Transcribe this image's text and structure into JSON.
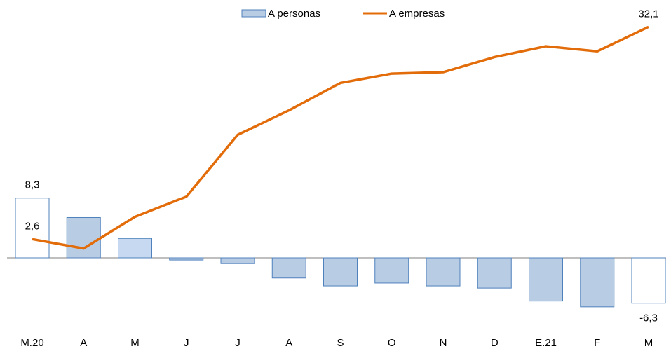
{
  "chart_data": {
    "type": "bar-line",
    "categories": [
      "M.20",
      "A",
      "M",
      "J",
      "J",
      "A",
      "S",
      "O",
      "N",
      "D",
      "E.21",
      "F",
      "M"
    ],
    "series": [
      {
        "name": "A personas",
        "type": "bar",
        "color": "#b8cce4",
        "stroke": "#4f81bd",
        "colors": [
          "#ffffff",
          "#b8cce4",
          "#c6d9f0",
          "#b8cce4",
          "#b8cce4",
          "#b8cce4",
          "#b8cce4",
          "#b8cce4",
          "#b8cce4",
          "#b8cce4",
          "#b8cce4",
          "#b8cce4",
          "#ffffff"
        ],
        "values": [
          8.3,
          5.6,
          2.7,
          -0.3,
          -0.8,
          -2.8,
          -3.9,
          -3.5,
          -3.9,
          -4.2,
          -6.0,
          -6.8,
          -6.3
        ],
        "value_labels": [
          "8,3",
          null,
          null,
          null,
          null,
          null,
          null,
          null,
          null,
          null,
          null,
          null,
          "-6,3"
        ]
      },
      {
        "name": "A empresas",
        "type": "line",
        "color": "#e36c0a",
        "values": [
          2.6,
          1.3,
          5.7,
          8.5,
          17.1,
          20.5,
          24.3,
          25.6,
          25.8,
          27.9,
          29.4,
          28.7,
          32.1
        ],
        "value_labels": [
          "2,6",
          null,
          null,
          null,
          null,
          null,
          null,
          null,
          null,
          null,
          null,
          null,
          "32,1"
        ]
      }
    ]
  }
}
